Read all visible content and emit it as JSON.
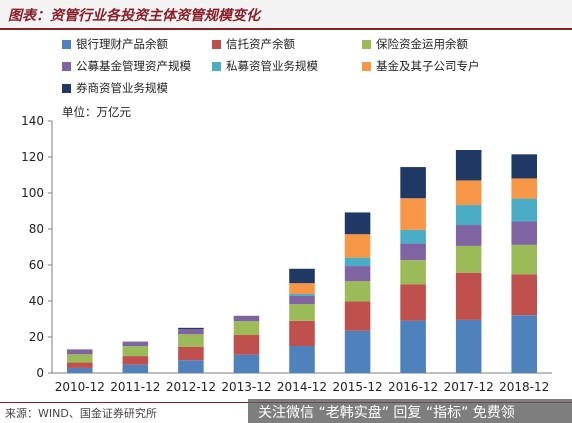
{
  "title": "图表：资管行业各投资主体资管规模变化",
  "unit": "单位：万亿元",
  "source": "来源：WIND、国金证券研究所",
  "promo": "关注微信 “老韩实盘” 回复 “指标” 免费领",
  "chart_data": {
    "type": "bar",
    "stacked": true,
    "categories": [
      "2010-12",
      "2011-12",
      "2012-12",
      "2013-12",
      "2014-12",
      "2015-12",
      "2016-12",
      "2017-12",
      "2018-12"
    ],
    "ylim": [
      0,
      140
    ],
    "yticks": [
      0,
      20,
      40,
      60,
      80,
      100,
      120,
      140
    ],
    "grid": false,
    "legend_position": "top",
    "series": [
      {
        "name": "银行理财产品余额",
        "color": "#4f81bd",
        "values": [
          2.8,
          4.6,
          7.1,
          10.2,
          15.0,
          23.5,
          29.1,
          29.5,
          32.1
        ]
      },
      {
        "name": "信托资产余额",
        "color": "#c0504d",
        "values": [
          3.0,
          4.8,
          7.5,
          10.9,
          14.0,
          16.3,
          20.2,
          26.2,
          22.7
        ]
      },
      {
        "name": "保险资金运用余额",
        "color": "#9bbb59",
        "values": [
          4.6,
          5.5,
          6.9,
          7.7,
          9.3,
          11.2,
          13.4,
          14.9,
          16.4
        ]
      },
      {
        "name": "公募基金管理资产规模",
        "color": "#8064a2",
        "values": [
          2.5,
          2.2,
          2.9,
          3.0,
          4.5,
          8.4,
          9.2,
          11.6,
          13.0
        ]
      },
      {
        "name": "私募资管业务规模",
        "color": "#4bacc6",
        "values": [
          0.0,
          0.0,
          0.0,
          0.0,
          1.1,
          4.7,
          7.6,
          11.1,
          12.7
        ]
      },
      {
        "name": "基金及其子公司专户",
        "color": "#f79646",
        "values": [
          0.0,
          0.0,
          0.0,
          0.0,
          6.0,
          13.0,
          17.6,
          13.7,
          11.2
        ]
      },
      {
        "name": "券商资管业务规模",
        "color": "#1f3864",
        "values": [
          0.2,
          0.3,
          0.7,
          0.0,
          8.0,
          12.1,
          17.3,
          16.9,
          13.4
        ]
      }
    ]
  }
}
